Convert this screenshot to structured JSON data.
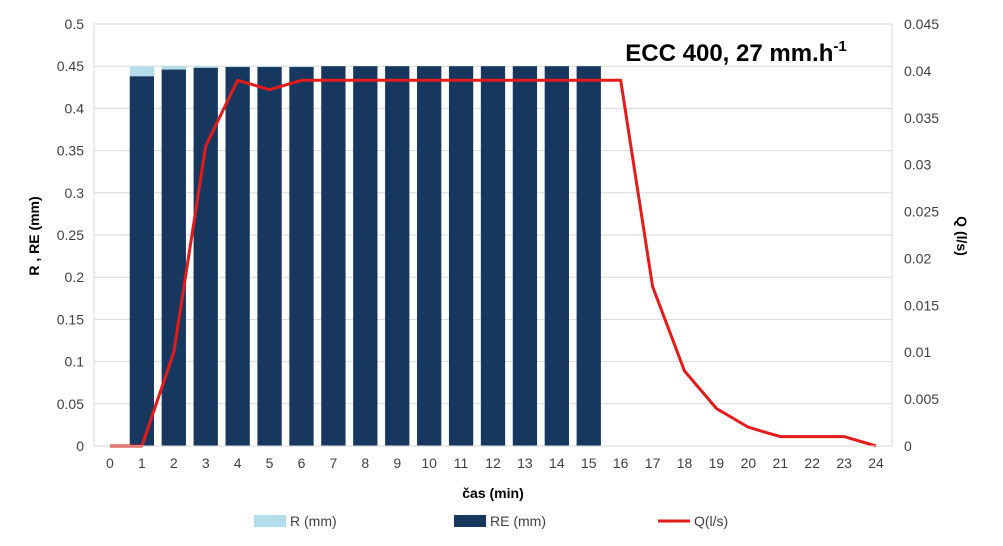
{
  "chart_data": {
    "type": "bar+line",
    "title": "ECC 400, 27 mm.h",
    "title_superscript": "-1",
    "xlabel": "čas (min)",
    "ylabel": "R , RE (mm)",
    "y2label": "Q (l/s)",
    "x": [
      0,
      1,
      2,
      3,
      4,
      5,
      6,
      7,
      8,
      9,
      10,
      11,
      12,
      13,
      14,
      15,
      16,
      17,
      18,
      19,
      20,
      21,
      22,
      23,
      24
    ],
    "ylim": [
      0,
      0.5
    ],
    "y2lim": [
      0,
      0.045
    ],
    "yticks": [
      "0",
      "0.05",
      "0.1",
      "0.15",
      "0.2",
      "0.25",
      "0.3",
      "0.35",
      "0.4",
      "0.45",
      "0.5"
    ],
    "y2ticks": [
      "0",
      "0.005",
      "0.01",
      "0.015",
      "0.02",
      "0.025",
      "0.03",
      "0.035",
      "0.04",
      "0.045"
    ],
    "grid": true,
    "legend_position": "bottom",
    "series": [
      {
        "name": "R (mm)",
        "type": "bar",
        "color": "#B4DDEA",
        "values": [
          null,
          0.45,
          0.45,
          0.45,
          0.45,
          0.45,
          0.45,
          0.45,
          0.45,
          0.45,
          0.45,
          0.45,
          0.45,
          0.45,
          0.45,
          0.45,
          null,
          null,
          null,
          null,
          null,
          null,
          null,
          null,
          null
        ]
      },
      {
        "name": "RE (mm)",
        "type": "bar",
        "color": "#17375E",
        "values": [
          null,
          0.438,
          0.446,
          0.448,
          0.449,
          0.449,
          0.449,
          0.45,
          0.45,
          0.45,
          0.45,
          0.45,
          0.45,
          0.45,
          0.45,
          0.45,
          null,
          null,
          null,
          null,
          null,
          null,
          null,
          null,
          null
        ]
      },
      {
        "name": "Q(l/s)",
        "type": "line",
        "axis": "right",
        "color": "#E31B1B",
        "values": [
          0,
          0,
          0.01,
          0.032,
          0.039,
          0.038,
          0.039,
          0.039,
          0.039,
          0.039,
          0.039,
          0.039,
          0.039,
          0.039,
          0.039,
          0.039,
          0.039,
          0.017,
          0.008,
          0.004,
          0.002,
          0.001,
          0.001,
          0.001,
          0
        ]
      }
    ]
  }
}
